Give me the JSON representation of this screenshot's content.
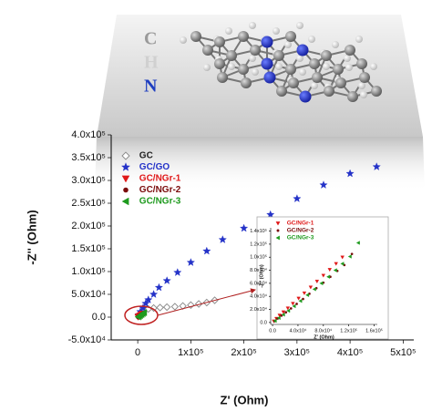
{
  "chart_data": [
    {
      "type": "scatter",
      "xlabel": "Z' (Ohm)",
      "ylabel": "-Z'' (Ohm)",
      "xlim": [
        -50000,
        520000
      ],
      "ylim": [
        -50000,
        400000
      ],
      "xticks": [
        0,
        {
          "value": 100000,
          "label": "1x10⁵"
        },
        {
          "value": 200000,
          "label": "2x10⁵"
        },
        {
          "value": 300000,
          "label": "3x10⁵"
        },
        {
          "value": 400000,
          "label": "4x10⁵"
        },
        {
          "value": 500000,
          "label": "5x10⁵"
        }
      ],
      "yticks": [
        {
          "value": -50000,
          "label": "-5.0x10⁴"
        },
        {
          "value": 0,
          "label": "0.0"
        },
        {
          "value": 50000,
          "label": "5.0x10⁴"
        },
        {
          "value": 100000,
          "label": "1.0x10⁵"
        },
        {
          "value": 150000,
          "label": "1.5x10⁵"
        },
        {
          "value": 200000,
          "label": "2.0x10⁵"
        },
        {
          "value": 250000,
          "label": "2.5x10⁵"
        },
        {
          "value": 300000,
          "label": "3.0x10⁵"
        },
        {
          "value": 350000,
          "label": "3.5x10⁵"
        },
        {
          "value": 400000,
          "label": "4.0x10⁵"
        }
      ],
      "legend": "upper left",
      "series": [
        {
          "name": "GC",
          "color": "#888888",
          "marker": "diamond",
          "x": [
            5000,
            12000,
            20000,
            30000,
            42000,
            55000,
            70000,
            85000,
            100000,
            115000,
            130000,
            145000
          ],
          "y": [
            8000,
            14000,
            18000,
            20000,
            21000,
            22000,
            23000,
            24500,
            26500,
            29000,
            32000,
            37000
          ]
        },
        {
          "name": "GC/GO",
          "color": "#2432c8",
          "marker": "star",
          "x": [
            2000,
            5000,
            10000,
            15000,
            20000,
            30000,
            40000,
            55000,
            75000,
            100000,
            130000,
            160000,
            200000,
            250000,
            300000,
            350000,
            400000,
            450000
          ],
          "y": [
            5000,
            12000,
            20000,
            30000,
            38000,
            50000,
            65000,
            80000,
            98000,
            120000,
            145000,
            170000,
            195000,
            225000,
            260000,
            290000,
            315000,
            330000
          ]
        },
        {
          "name": "GC/NGr-1",
          "color": "#e01818",
          "marker": "triangle-down",
          "x": [
            500,
            1500,
            3000,
            5000,
            7000,
            9000
          ],
          "y": [
            400,
            1200,
            2500,
            4200,
            6000,
            7800
          ]
        },
        {
          "name": "GC/NGr-2",
          "color": "#7a0a0a",
          "marker": "circle",
          "x": [
            600,
            2000,
            3500,
            6000,
            8000,
            10000
          ],
          "y": [
            400,
            1500,
            2800,
            4800,
            6500,
            8200
          ]
        },
        {
          "name": "GC/NGr-3",
          "color": "#1e9a1e",
          "marker": "triangle-left",
          "x": [
            800,
            2500,
            4500,
            7000,
            9500,
            12000
          ],
          "y": [
            600,
            2000,
            3800,
            5800,
            8000,
            10000
          ]
        }
      ]
    },
    {
      "type": "scatter",
      "xlabel": "Z' (Ohm)",
      "ylabel": "-Z'' (Ohm)",
      "xlim": [
        -3000,
        165000
      ],
      "ylim": [
        -3000,
        145000
      ],
      "xticks": [
        {
          "value": 0,
          "label": "0.0"
        },
        {
          "value": 40000,
          "label": "4.0x10⁴"
        },
        {
          "value": 80000,
          "label": "8.0x10⁴"
        },
        {
          "value": 120000,
          "label": "1.2x10⁵"
        },
        {
          "value": 160000,
          "label": "1.6x10⁵"
        }
      ],
      "yticks": [
        {
          "value": 0,
          "label": "0.0"
        },
        {
          "value": 20000,
          "label": "2.0x10⁴"
        },
        {
          "value": 40000,
          "label": "4.0x10⁴"
        },
        {
          "value": 60000,
          "label": "6.0x10⁴"
        },
        {
          "value": 80000,
          "label": "8.0x10⁴"
        },
        {
          "value": 100000,
          "label": "1.0x10⁵"
        },
        {
          "value": 120000,
          "label": "1.2x10⁵"
        },
        {
          "value": 140000,
          "label": "1.4x10⁵"
        }
      ],
      "legend": "upper left",
      "series": [
        {
          "name": "GC/NGr-1",
          "color": "#e01818",
          "marker": "triangle-down",
          "x": [
            2000,
            6000,
            11000,
            17000,
            24000,
            32000,
            41000,
            50000,
            60000,
            70000,
            80000,
            90000,
            100000,
            110000
          ],
          "y": [
            2000,
            6000,
            11000,
            16000,
            22000,
            29000,
            37000,
            45000,
            54000,
            63000,
            72000,
            81000,
            90000,
            100000
          ]
        },
        {
          "name": "GC/NGr-2",
          "color": "#7a0a0a",
          "marker": "circle",
          "x": [
            3000,
            8000,
            14000,
            21000,
            29000,
            38000,
            48000,
            58000,
            69000,
            80000,
            91000,
            102000,
            113000,
            125000
          ],
          "y": [
            2000,
            6000,
            10500,
            15500,
            21500,
            28500,
            36000,
            44000,
            52500,
            61000,
            70000,
            79000,
            88000,
            105000
          ]
        },
        {
          "name": "GC/NGr-3",
          "color": "#1e9a1e",
          "marker": "triangle-left",
          "x": [
            4000,
            10000,
            17000,
            25000,
            34000,
            44000,
            55000,
            66000,
            77000,
            88000,
            99000,
            110000,
            122000,
            135000
          ],
          "y": [
            2500,
            7000,
            12000,
            18000,
            25000,
            33000,
            42000,
            51000,
            60000,
            70000,
            80000,
            90000,
            101000,
            122000
          ]
        }
      ]
    }
  ],
  "illustration": {
    "labels": [
      "C",
      "H",
      "N"
    ]
  }
}
